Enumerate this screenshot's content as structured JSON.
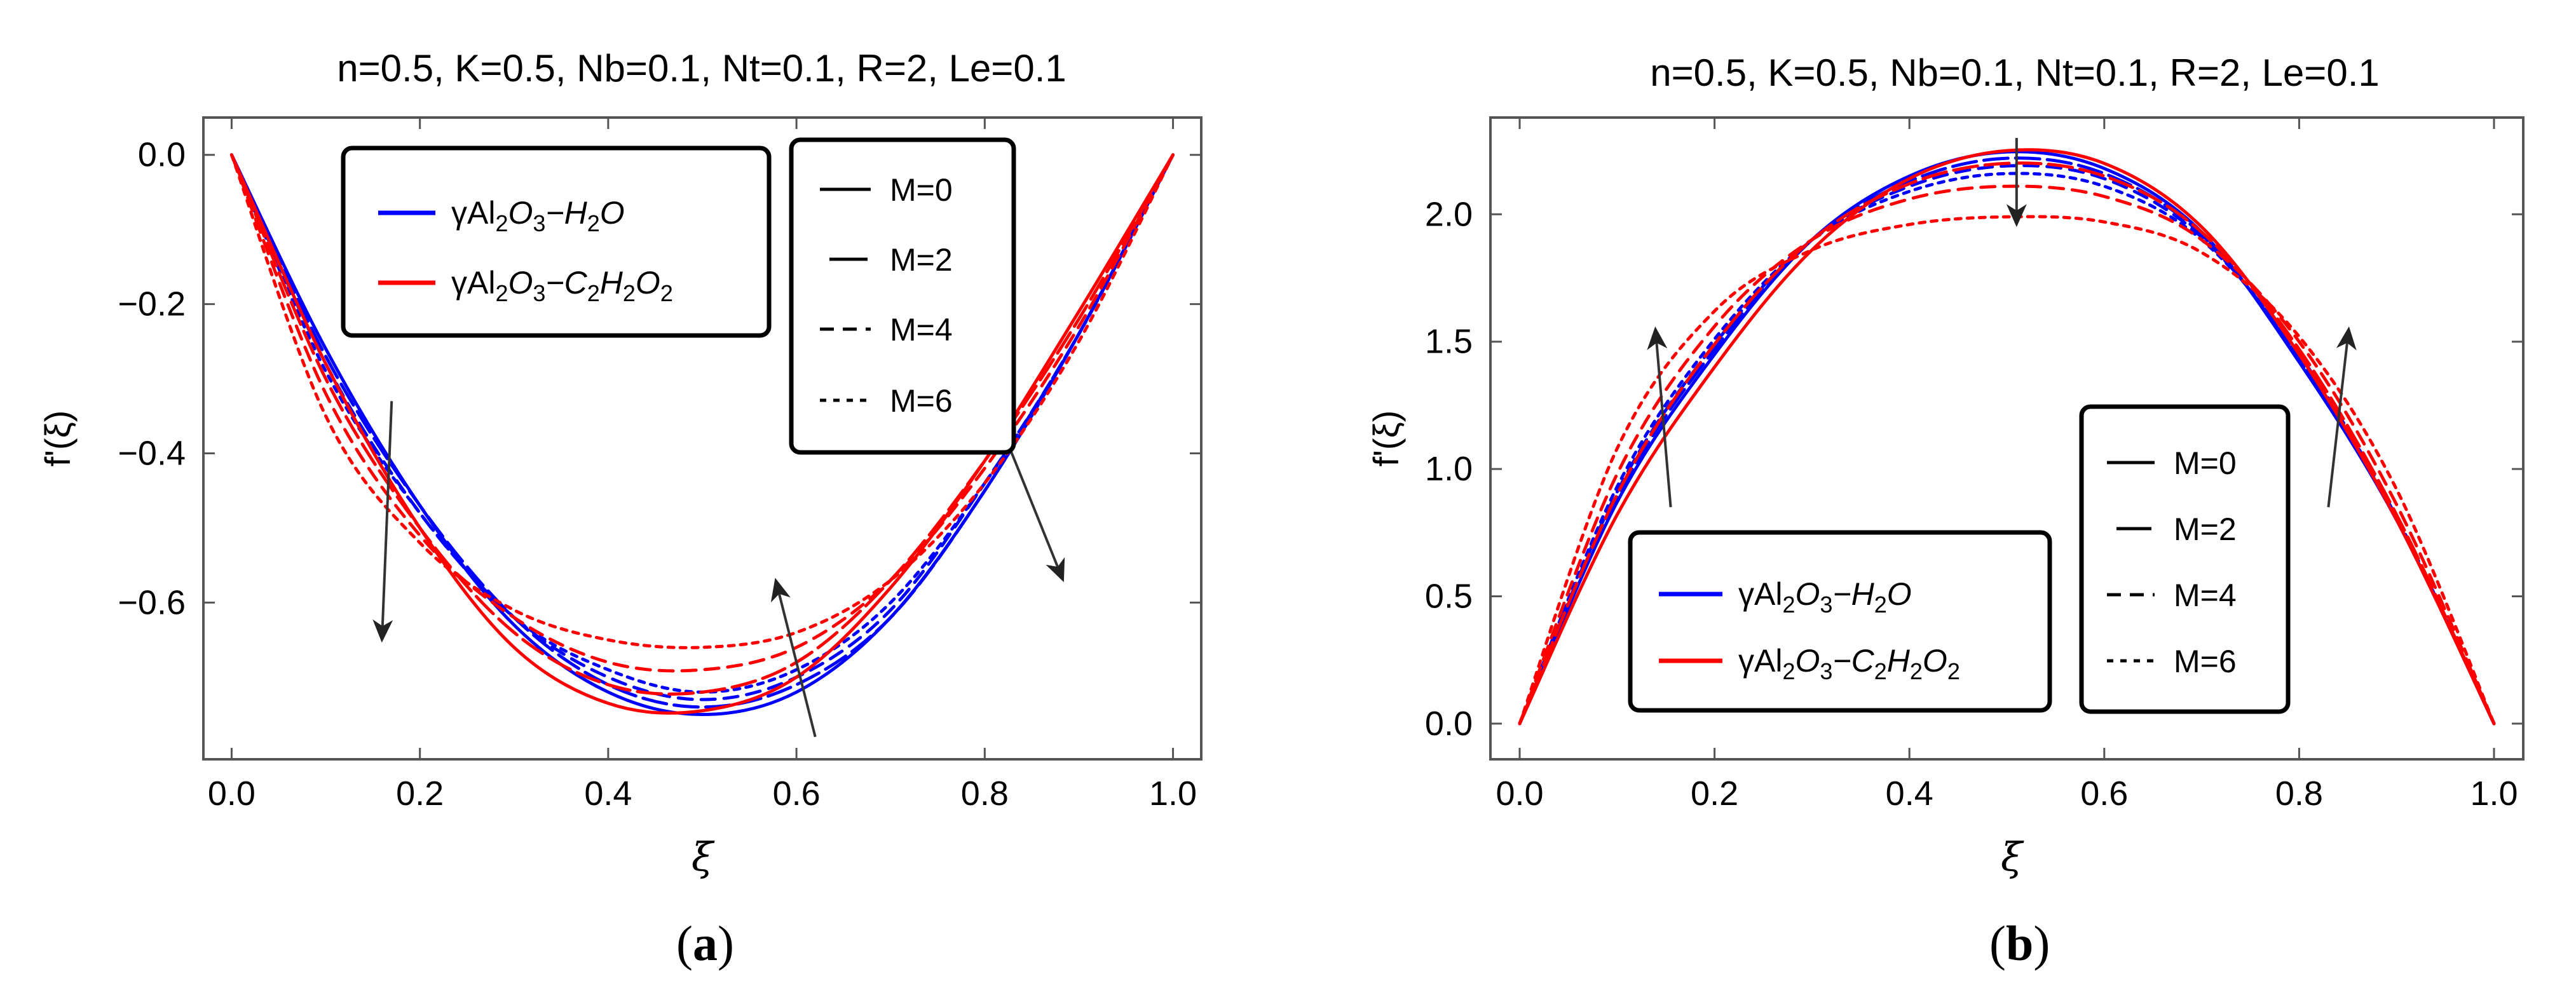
{
  "figure": {
    "captions": [
      {
        "open": "(",
        "letter": "a",
        "close": ")"
      },
      {
        "open": "(",
        "letter": "b",
        "close": ")"
      }
    ]
  },
  "chart_data": [
    {
      "type": "line",
      "title": "n=0.5, K=0.5, Nb=0.1, Nt=0.1, R=2, Le=0.1",
      "xlabel": "ξ",
      "ylabel": "f'(ξ)",
      "xlim": [
        -0.03,
        1.03
      ],
      "ylim": [
        -0.81,
        0.05
      ],
      "xticks": [
        0.0,
        0.2,
        0.4,
        0.6,
        0.8,
        1.0
      ],
      "xtick_labels": [
        "0.0",
        "0.2",
        "0.4",
        "0.6",
        "0.8",
        "1.0"
      ],
      "yticks": [
        0.0,
        -0.2,
        -0.4,
        -0.6
      ],
      "ytick_labels": [
        "0.0",
        "−0.2",
        "−0.4",
        "−0.6"
      ],
      "grid": false,
      "fluid_legend": {
        "placement": "top-left",
        "entries": [
          {
            "color": "#0000ff",
            "parts": [
              [
                "γAl",
                "n"
              ],
              [
                "2",
                "sub"
              ],
              [
                "O",
                "i"
              ],
              [
                "3",
                "sub"
              ],
              [
                "−H",
                "i"
              ],
              [
                "2",
                "sub"
              ],
              [
                "O",
                "i"
              ]
            ]
          },
          {
            "color": "#ff0000",
            "parts": [
              [
                "γAl",
                "n"
              ],
              [
                "2",
                "sub"
              ],
              [
                "O",
                "i"
              ],
              [
                "3",
                "sub"
              ],
              [
                "−C",
                "i"
              ],
              [
                "2",
                "sub"
              ],
              [
                "H",
                "i"
              ],
              [
                "2",
                "sub"
              ],
              [
                "O",
                "i"
              ],
              [
                "2",
                "sub"
              ]
            ]
          }
        ]
      },
      "m_legend": {
        "placement": "top-center",
        "entries": [
          {
            "label": "M=0",
            "dash": "solid"
          },
          {
            "label": "M=2",
            "dash": "longdash"
          },
          {
            "label": "M=4",
            "dash": "dash"
          },
          {
            "label": "M=6",
            "dash": "dot"
          }
        ]
      },
      "series": [
        {
          "fluid": "H2O",
          "M": 0,
          "color": "#0000ff",
          "dash": "solid",
          "x": [
            0,
            0.1,
            0.2,
            0.3,
            0.4,
            0.5,
            0.6,
            0.7,
            0.8,
            0.9,
            1.0
          ],
          "y": [
            0,
            -0.26,
            -0.47,
            -0.63,
            -0.72,
            -0.75,
            -0.72,
            -0.62,
            -0.45,
            -0.24,
            0
          ]
        },
        {
          "fluid": "H2O",
          "M": 2,
          "color": "#0000ff",
          "dash": "longdash",
          "x": [
            0,
            0.1,
            0.2,
            0.3,
            0.4,
            0.5,
            0.6,
            0.7,
            0.8,
            0.9,
            1.0
          ],
          "y": [
            0,
            -0.27,
            -0.47,
            -0.62,
            -0.71,
            -0.74,
            -0.71,
            -0.62,
            -0.45,
            -0.24,
            0
          ]
        },
        {
          "fluid": "H2O",
          "M": 4,
          "color": "#0000ff",
          "dash": "dash",
          "x": [
            0,
            0.1,
            0.2,
            0.3,
            0.4,
            0.5,
            0.6,
            0.7,
            0.8,
            0.9,
            1.0
          ],
          "y": [
            0,
            -0.28,
            -0.48,
            -0.62,
            -0.7,
            -0.73,
            -0.7,
            -0.61,
            -0.44,
            -0.24,
            0
          ]
        },
        {
          "fluid": "H2O",
          "M": 6,
          "color": "#0000ff",
          "dash": "dot",
          "x": [
            0,
            0.1,
            0.2,
            0.3,
            0.4,
            0.5,
            0.6,
            0.7,
            0.8,
            0.9,
            1.0
          ],
          "y": [
            0,
            -0.29,
            -0.48,
            -0.62,
            -0.69,
            -0.72,
            -0.69,
            -0.6,
            -0.44,
            -0.24,
            0
          ]
        },
        {
          "fluid": "C2H2O2",
          "M": 0,
          "color": "#ff0000",
          "dash": "solid",
          "x": [
            0,
            0.1,
            0.2,
            0.3,
            0.4,
            0.5,
            0.6,
            0.7,
            0.8,
            0.9,
            1.0
          ],
          "y": [
            0,
            -0.28,
            -0.5,
            -0.66,
            -0.735,
            -0.745,
            -0.7,
            -0.58,
            -0.41,
            -0.21,
            0
          ]
        },
        {
          "fluid": "C2H2O2",
          "M": 2,
          "color": "#ff0000",
          "dash": "longdash",
          "x": [
            0,
            0.1,
            0.2,
            0.3,
            0.4,
            0.5,
            0.6,
            0.7,
            0.8,
            0.9,
            1.0
          ],
          "y": [
            0,
            -0.3,
            -0.5,
            -0.64,
            -0.71,
            -0.72,
            -0.68,
            -0.57,
            -0.41,
            -0.22,
            0
          ]
        },
        {
          "fluid": "C2H2O2",
          "M": 4,
          "color": "#ff0000",
          "dash": "dash",
          "x": [
            0,
            0.1,
            0.2,
            0.3,
            0.4,
            0.5,
            0.6,
            0.7,
            0.8,
            0.9,
            1.0
          ],
          "y": [
            0,
            -0.32,
            -0.51,
            -0.62,
            -0.68,
            -0.69,
            -0.66,
            -0.57,
            -0.42,
            -0.23,
            0
          ]
        },
        {
          "fluid": "C2H2O2",
          "M": 6,
          "color": "#ff0000",
          "dash": "dot",
          "x": [
            0,
            0.1,
            0.2,
            0.3,
            0.4,
            0.5,
            0.6,
            0.7,
            0.8,
            0.9,
            1.0
          ],
          "y": [
            0,
            -0.35,
            -0.52,
            -0.61,
            -0.65,
            -0.66,
            -0.64,
            -0.57,
            -0.44,
            -0.25,
            0
          ]
        }
      ],
      "arrows": [
        {
          "from": [
            0.17,
            -0.33
          ],
          "to": [
            0.16,
            -0.64
          ]
        },
        {
          "from": [
            0.62,
            -0.78
          ],
          "to": [
            0.58,
            -0.58
          ]
        },
        {
          "from": [
            0.8,
            -0.31
          ],
          "to": [
            0.88,
            -0.56
          ]
        }
      ]
    },
    {
      "type": "line",
      "title": "n=0.5, K=0.5, Nb=0.1, Nt=0.1, R=2, Le=0.1",
      "xlabel": "ξ",
      "ylabel": "f'(ξ)",
      "xlim": [
        -0.03,
        1.03
      ],
      "ylim": [
        -0.14,
        2.38
      ],
      "xticks": [
        0.0,
        0.2,
        0.4,
        0.6,
        0.8,
        1.0
      ],
      "xtick_labels": [
        "0.0",
        "0.2",
        "0.4",
        "0.6",
        "0.8",
        "1.0"
      ],
      "yticks": [
        0.0,
        0.5,
        1.0,
        1.5,
        2.0
      ],
      "ytick_labels": [
        "0.0",
        "0.5",
        "1.0",
        "1.5",
        "2.0"
      ],
      "grid": false,
      "fluid_legend": {
        "placement": "bottom-left",
        "entries": [
          {
            "color": "#0000ff",
            "parts": [
              [
                "γAl",
                "n"
              ],
              [
                "2",
                "sub"
              ],
              [
                "O",
                "i"
              ],
              [
                "3",
                "sub"
              ],
              [
                "−H",
                "i"
              ],
              [
                "2",
                "sub"
              ],
              [
                "O",
                "i"
              ]
            ]
          },
          {
            "color": "#ff0000",
            "parts": [
              [
                "γAl",
                "n"
              ],
              [
                "2",
                "sub"
              ],
              [
                "O",
                "i"
              ],
              [
                "3",
                "sub"
              ],
              [
                "−C",
                "i"
              ],
              [
                "2",
                "sub"
              ],
              [
                "H",
                "i"
              ],
              [
                "2",
                "sub"
              ],
              [
                "O",
                "i"
              ],
              [
                "2",
                "sub"
              ]
            ]
          }
        ]
      },
      "m_legend": {
        "placement": "bottom-right",
        "entries": [
          {
            "label": "M=0",
            "dash": "solid"
          },
          {
            "label": "M=2",
            "dash": "longdash"
          },
          {
            "label": "M=4",
            "dash": "dash"
          },
          {
            "label": "M=6",
            "dash": "dot"
          }
        ]
      },
      "series": [
        {
          "fluid": "H2O",
          "M": 0,
          "color": "#0000ff",
          "dash": "solid",
          "x": [
            0,
            0.1,
            0.2,
            0.3,
            0.4,
            0.5,
            0.6,
            0.7,
            0.8,
            0.9,
            1.0
          ],
          "y": [
            0,
            0.87,
            1.45,
            1.9,
            2.15,
            2.245,
            2.18,
            1.93,
            1.42,
            0.8,
            0
          ]
        },
        {
          "fluid": "H2O",
          "M": 2,
          "color": "#0000ff",
          "dash": "longdash",
          "x": [
            0,
            0.1,
            0.2,
            0.3,
            0.4,
            0.5,
            0.6,
            0.7,
            0.8,
            0.9,
            1.0
          ],
          "y": [
            0,
            0.89,
            1.47,
            1.9,
            2.13,
            2.22,
            2.16,
            1.92,
            1.43,
            0.8,
            0
          ]
        },
        {
          "fluid": "H2O",
          "M": 4,
          "color": "#0000ff",
          "dash": "dash",
          "x": [
            0,
            0.1,
            0.2,
            0.3,
            0.4,
            0.5,
            0.6,
            0.7,
            0.8,
            0.9,
            1.0
          ],
          "y": [
            0,
            0.91,
            1.49,
            1.9,
            2.11,
            2.19,
            2.14,
            1.91,
            1.44,
            0.8,
            0
          ]
        },
        {
          "fluid": "H2O",
          "M": 6,
          "color": "#0000ff",
          "dash": "dot",
          "x": [
            0,
            0.1,
            0.2,
            0.3,
            0.4,
            0.5,
            0.6,
            0.7,
            0.8,
            0.9,
            1.0
          ],
          "y": [
            0,
            0.93,
            1.51,
            1.9,
            2.09,
            2.16,
            2.11,
            1.9,
            1.45,
            0.81,
            0
          ]
        },
        {
          "fluid": "C2H2O2",
          "M": 0,
          "color": "#ff0000",
          "dash": "solid",
          "x": [
            0,
            0.1,
            0.2,
            0.3,
            0.4,
            0.5,
            0.6,
            0.7,
            0.8,
            0.9,
            1.0
          ],
          "y": [
            0,
            0.82,
            1.4,
            1.86,
            2.14,
            2.25,
            2.2,
            1.95,
            1.45,
            0.8,
            0
          ]
        },
        {
          "fluid": "C2H2O2",
          "M": 2,
          "color": "#ff0000",
          "dash": "longdash",
          "x": [
            0,
            0.1,
            0.2,
            0.3,
            0.4,
            0.5,
            0.6,
            0.7,
            0.8,
            0.9,
            1.0
          ],
          "y": [
            0,
            0.9,
            1.49,
            1.9,
            2.12,
            2.2,
            2.15,
            1.93,
            1.47,
            0.82,
            0
          ]
        },
        {
          "fluid": "C2H2O2",
          "M": 4,
          "color": "#ff0000",
          "dash": "dash",
          "x": [
            0,
            0.1,
            0.2,
            0.3,
            0.4,
            0.5,
            0.6,
            0.7,
            0.8,
            0.9,
            1.0
          ],
          "y": [
            0,
            0.98,
            1.56,
            1.9,
            2.06,
            2.11,
            2.07,
            1.9,
            1.5,
            0.86,
            0
          ]
        },
        {
          "fluid": "C2H2O2",
          "M": 6,
          "color": "#ff0000",
          "dash": "dot",
          "x": [
            0,
            0.1,
            0.2,
            0.3,
            0.4,
            0.5,
            0.6,
            0.7,
            0.8,
            0.9,
            1.0
          ],
          "y": [
            0,
            1.08,
            1.62,
            1.86,
            1.96,
            1.99,
            1.97,
            1.85,
            1.52,
            0.92,
            0
          ]
        }
      ],
      "arrows": [
        {
          "from": [
            0.155,
            0.85
          ],
          "to": [
            0.14,
            1.52
          ]
        },
        {
          "from": [
            0.51,
            2.3
          ],
          "to": [
            0.51,
            1.99
          ]
        },
        {
          "from": [
            0.83,
            0.85
          ],
          "to": [
            0.85,
            1.52
          ]
        }
      ]
    }
  ]
}
